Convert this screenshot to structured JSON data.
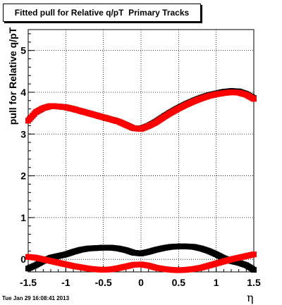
{
  "chart_data": {
    "type": "scatter",
    "title": "Fitted pull for Relative q/pT  Primary Tracks",
    "xlabel": "η",
    "ylabel": "pull for Relative q/pT",
    "xlim": [
      -1.5,
      1.5
    ],
    "ylim": [
      -0.3,
      5.5
    ],
    "x_ticks": [
      "-1.5",
      "-1",
      "-0.5",
      "0",
      "0.5",
      "1",
      "1.5"
    ],
    "y_ticks": [
      "0",
      "1",
      "2",
      "3",
      "4",
      "5"
    ],
    "grid": true,
    "timestamp": "Tue Jan 29 16:08:41 2013",
    "series": [
      {
        "color": "#000000",
        "x": [
          -1.5,
          -1.4,
          -1.3,
          -1.2,
          -1.1,
          -1.0,
          -0.9,
          -0.8,
          -0.7,
          -0.6,
          -0.5,
          -0.4,
          -0.3,
          -0.2,
          -0.1,
          0.0,
          0.1,
          0.2,
          0.3,
          0.4,
          0.5,
          0.6,
          0.7,
          0.8,
          0.9,
          1.0,
          1.1,
          1.2,
          1.3,
          1.4,
          1.5
        ],
        "y": [
          3.32,
          3.52,
          3.62,
          3.67,
          3.66,
          3.64,
          3.6,
          3.55,
          3.5,
          3.45,
          3.4,
          3.35,
          3.3,
          3.22,
          3.14,
          3.13,
          3.2,
          3.3,
          3.42,
          3.53,
          3.63,
          3.72,
          3.8,
          3.87,
          3.93,
          3.97,
          4.01,
          4.03,
          4.02,
          3.96,
          3.86
        ]
      },
      {
        "color": "#ff0000",
        "x": [
          -1.5,
          -1.4,
          -1.3,
          -1.2,
          -1.1,
          -1.0,
          -0.9,
          -0.8,
          -0.7,
          -0.6,
          -0.5,
          -0.4,
          -0.3,
          -0.2,
          -0.1,
          0.0,
          0.1,
          0.2,
          0.3,
          0.4,
          0.5,
          0.6,
          0.7,
          0.8,
          0.9,
          1.0,
          1.1,
          1.2,
          1.3,
          1.4,
          1.5
        ],
        "y": [
          3.32,
          3.52,
          3.62,
          3.67,
          3.66,
          3.64,
          3.6,
          3.55,
          3.5,
          3.45,
          3.4,
          3.35,
          3.3,
          3.22,
          3.14,
          3.12,
          3.19,
          3.28,
          3.4,
          3.51,
          3.61,
          3.7,
          3.78,
          3.85,
          3.91,
          3.95,
          3.98,
          4.0,
          3.99,
          3.94,
          3.84
        ]
      },
      {
        "color": "#000000",
        "x": [
          -1.5,
          -1.4,
          -1.3,
          -1.2,
          -1.1,
          -1.0,
          -0.9,
          -0.8,
          -0.7,
          -0.6,
          -0.5,
          -0.4,
          -0.3,
          -0.2,
          -0.1,
          0.0,
          0.1,
          0.2,
          0.3,
          0.4,
          0.5,
          0.6,
          0.7,
          0.8,
          0.9,
          1.0,
          1.1,
          1.2,
          1.3,
          1.4,
          1.5
        ],
        "y": [
          -0.22,
          -0.14,
          -0.04,
          0.04,
          0.08,
          0.12,
          0.18,
          0.23,
          0.26,
          0.27,
          0.28,
          0.28,
          0.26,
          0.22,
          0.16,
          0.14,
          0.18,
          0.23,
          0.27,
          0.3,
          0.31,
          0.31,
          0.3,
          0.26,
          0.2,
          0.12,
          0.03,
          -0.04,
          -0.08,
          -0.14,
          -0.25
        ]
      },
      {
        "color": "#ff0000",
        "x": [
          -1.5,
          -1.4,
          -1.3,
          -1.2,
          -1.1,
          -1.0,
          -0.9,
          -0.8,
          -0.7,
          -0.6,
          -0.5,
          -0.4,
          -0.3,
          -0.2,
          -0.1,
          0.0,
          0.1,
          0.2,
          0.3,
          0.4,
          0.5,
          0.6,
          0.7,
          0.8,
          0.9,
          1.0,
          1.1,
          1.2,
          1.3,
          1.4,
          1.5
        ],
        "y": [
          0.06,
          0.04,
          0.0,
          -0.04,
          -0.08,
          -0.12,
          -0.16,
          -0.19,
          -0.22,
          -0.24,
          -0.25,
          -0.24,
          -0.21,
          -0.17,
          -0.13,
          -0.12,
          -0.15,
          -0.2,
          -0.23,
          -0.25,
          -0.26,
          -0.25,
          -0.23,
          -0.2,
          -0.15,
          -0.1,
          -0.05,
          0.0,
          0.04,
          0.08,
          0.12
        ]
      }
    ]
  }
}
